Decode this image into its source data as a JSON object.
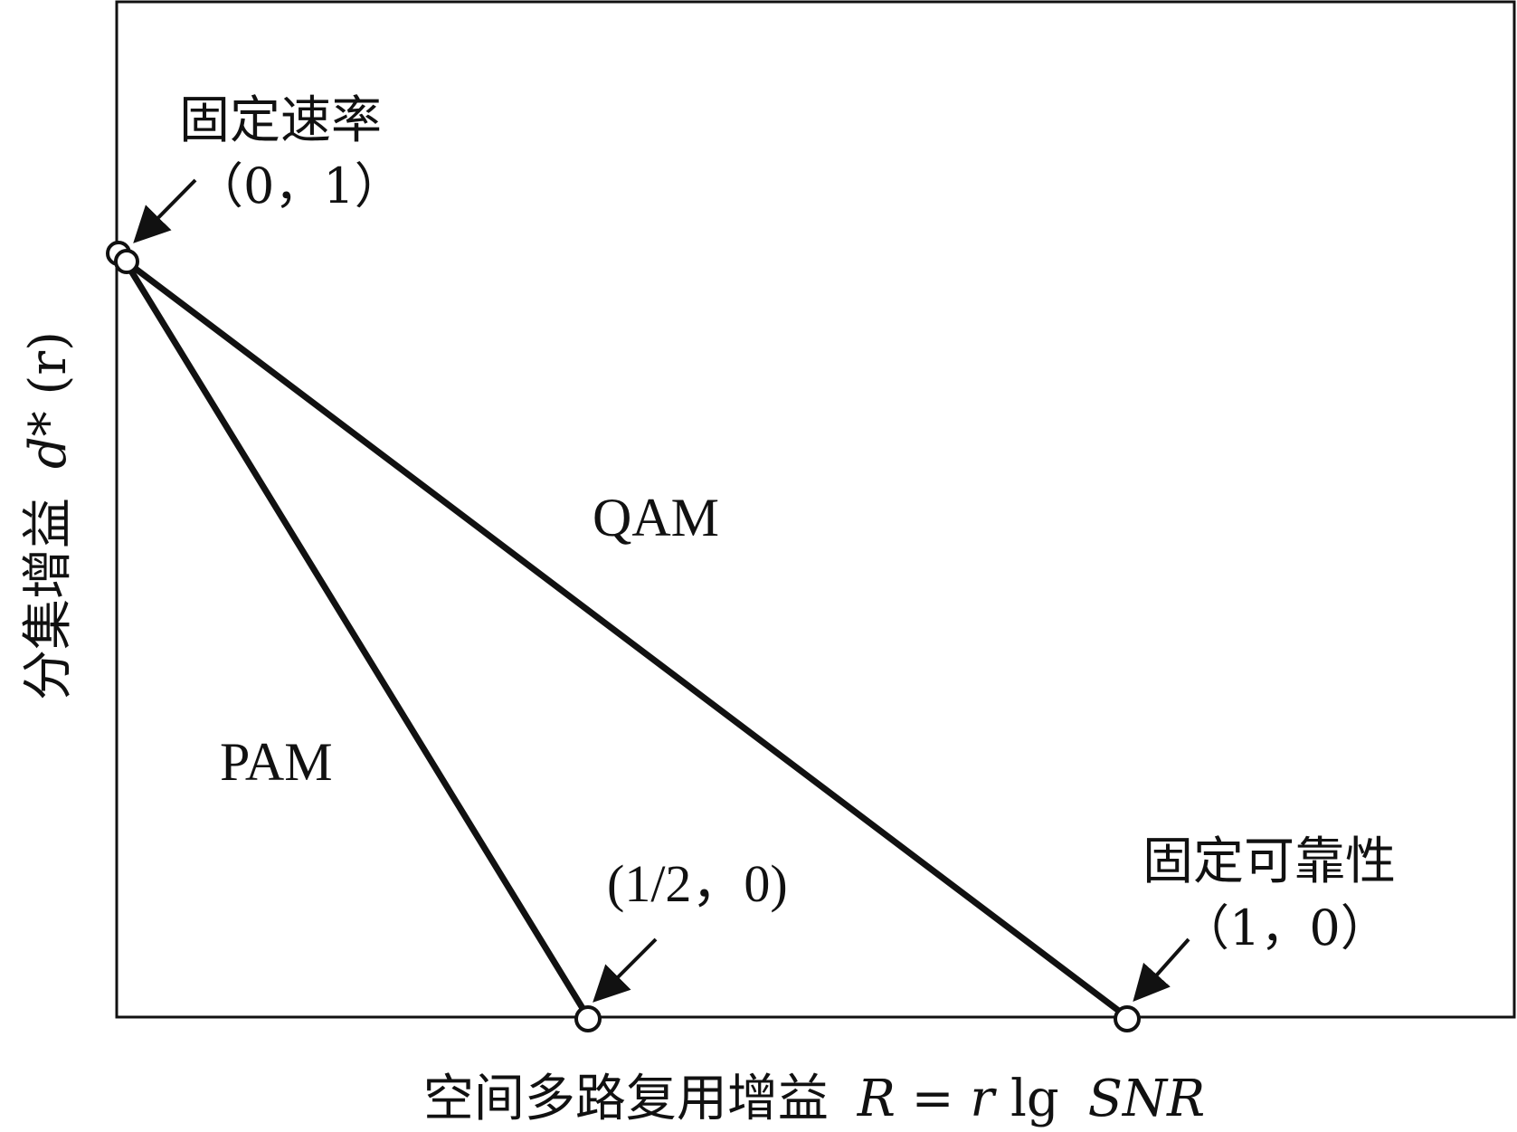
{
  "diagram": {
    "y_axis_label": {
      "cjk": "分集增益",
      "symbol": "d*",
      "arg": "(r)"
    },
    "x_axis_label": {
      "cjk": "空间多路复用增益",
      "R": "R",
      "eq": "=",
      "r": "r",
      "lg": "lg",
      "snr": "SNR"
    },
    "regions": {
      "qam": "QAM",
      "pam": "PAM"
    },
    "points": {
      "fixed_rate": {
        "title": "固定速率",
        "coord": "（0，1）"
      },
      "half": {
        "coord": "(1/2，0)"
      },
      "fixed_reliability": {
        "title": "固定可靠性",
        "coord": "（1，0）"
      }
    },
    "line_color": "#111111",
    "marker_fill": "#ffffff"
  }
}
